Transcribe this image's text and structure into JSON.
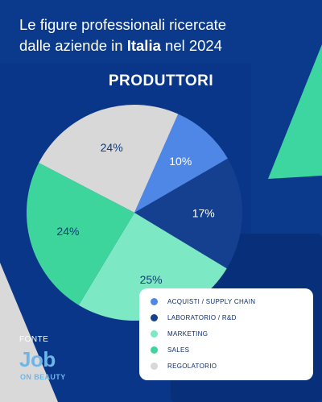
{
  "header": {
    "title_line1": "Le figure professionali ricercate",
    "title_line2_pre": "dalle aziende in ",
    "title_line2_bold": "Italia",
    "title_line2_post": " nel  2024",
    "subtitle": "PRODUTTORI"
  },
  "source": {
    "label": "FONTE",
    "logo_main": "Job",
    "logo_sub": "ON BEAUTY"
  },
  "colors": {
    "background": "#0b3a8c",
    "dark_panel": "#08307a",
    "accent_green": "#3dd6a0",
    "label_light": "#ffffff",
    "label_dark": "#123a7a"
  },
  "chart_data": {
    "type": "pie",
    "title": "PRODUTTORI",
    "slices": [
      {
        "name": "REGOLATORIO",
        "value": 24,
        "label": "24%",
        "color": "#d8d8d8"
      },
      {
        "name": "ACQUISTI / SUPPLY CHAIN",
        "value": 10,
        "label": "10%",
        "color": "#4f87e6"
      },
      {
        "name": "LABORATORIO / R&D",
        "value": 17,
        "label": "17%",
        "color": "#14408f"
      },
      {
        "name": "MARKETING",
        "value": 25,
        "label": "25%",
        "color": "#7de8c4"
      },
      {
        "name": "SALES",
        "value": 24,
        "label": "24%",
        "color": "#3dd59b"
      }
    ],
    "legend": [
      {
        "label": "ACQUISTI / SUPPLY CHAIN",
        "color": "#4f87e6"
      },
      {
        "label": "LABORATORIO / R&D",
        "color": "#14408f"
      },
      {
        "label": "MARKETING",
        "color": "#7de8c4"
      },
      {
        "label": "SALES",
        "color": "#3dd59b"
      },
      {
        "label": "REGOLATORIO",
        "color": "#d8d8d8"
      }
    ],
    "legend_position": "bottom-right"
  }
}
